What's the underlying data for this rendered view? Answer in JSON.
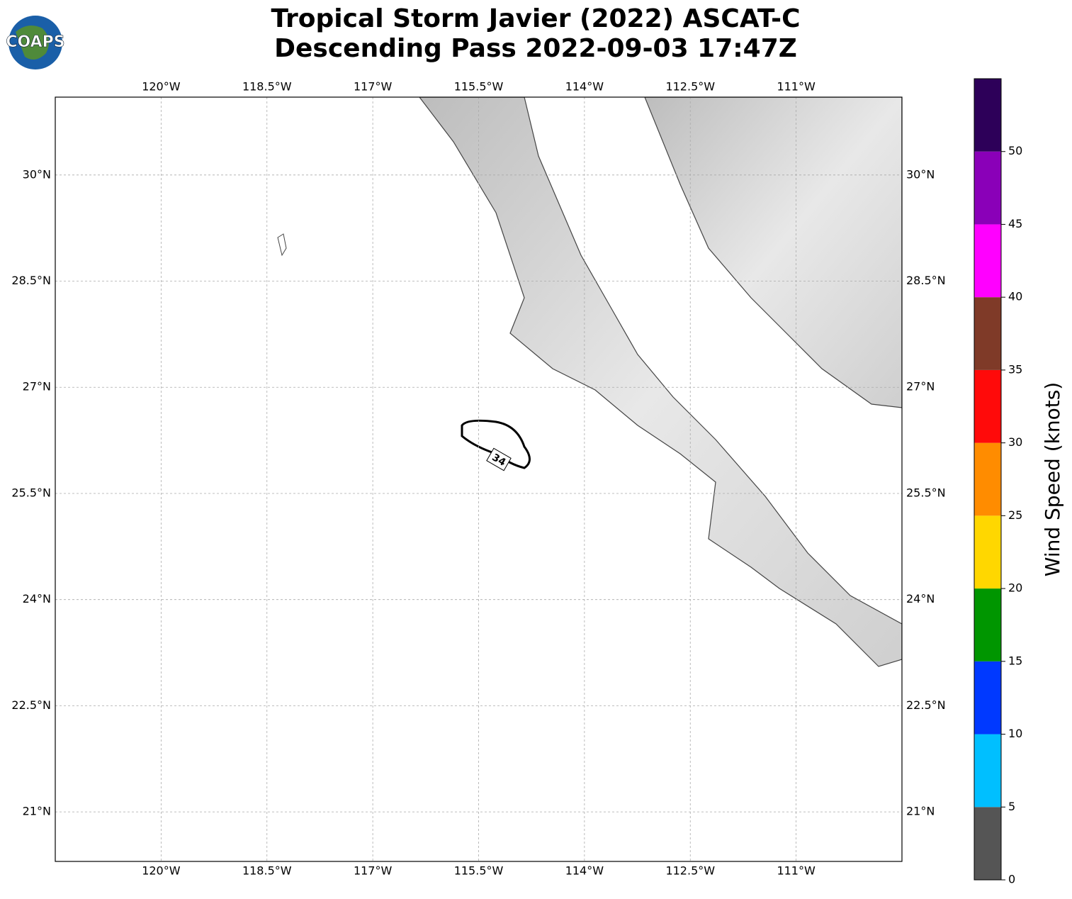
{
  "header": {
    "title_lines": [
      "Tropical Storm Javier (2022) ASCAT-C",
      "Descending Pass 2022-09-03 17:47Z"
    ],
    "logo": "COAPS"
  },
  "chart_data": {
    "type": "map",
    "xlim": [
      -121.5,
      -109.5
    ],
    "ylim": [
      20.3,
      31.1
    ],
    "xticks": [
      {
        "value": -120,
        "label": "120°W"
      },
      {
        "value": -118.5,
        "label": "118.5°W"
      },
      {
        "value": -117,
        "label": "117°W"
      },
      {
        "value": -115.5,
        "label": "115.5°W"
      },
      {
        "value": -114,
        "label": "114°W"
      },
      {
        "value": -112.5,
        "label": "112.5°W"
      },
      {
        "value": -111,
        "label": "111°W"
      }
    ],
    "yticks": [
      {
        "value": 21,
        "label": "21°N"
      },
      {
        "value": 22.5,
        "label": "22.5°N"
      },
      {
        "value": 24,
        "label": "24°N"
      },
      {
        "value": 25.5,
        "label": "25.5°N"
      },
      {
        "value": 27,
        "label": "27°N"
      },
      {
        "value": 28.5,
        "label": "28.5°N"
      },
      {
        "value": 30,
        "label": "30°N"
      }
    ],
    "grid": true,
    "contour_label": "34",
    "colorbar": {
      "label": "Wind Speed (knots)",
      "bins": [
        0,
        5,
        10,
        15,
        20,
        25,
        30,
        35,
        40,
        45,
        50,
        55
      ],
      "colors": [
        "#555555",
        "#00bfff",
        "#0039ff",
        "#009600",
        "#ffd700",
        "#ff8c00",
        "#ff0a0a",
        "#7f3a28",
        "#ff00ff",
        "#8a00b8",
        "#2d0059"
      ],
      "ticks": [
        0,
        5,
        10,
        15,
        20,
        25,
        30,
        35,
        40,
        45,
        50
      ]
    }
  }
}
